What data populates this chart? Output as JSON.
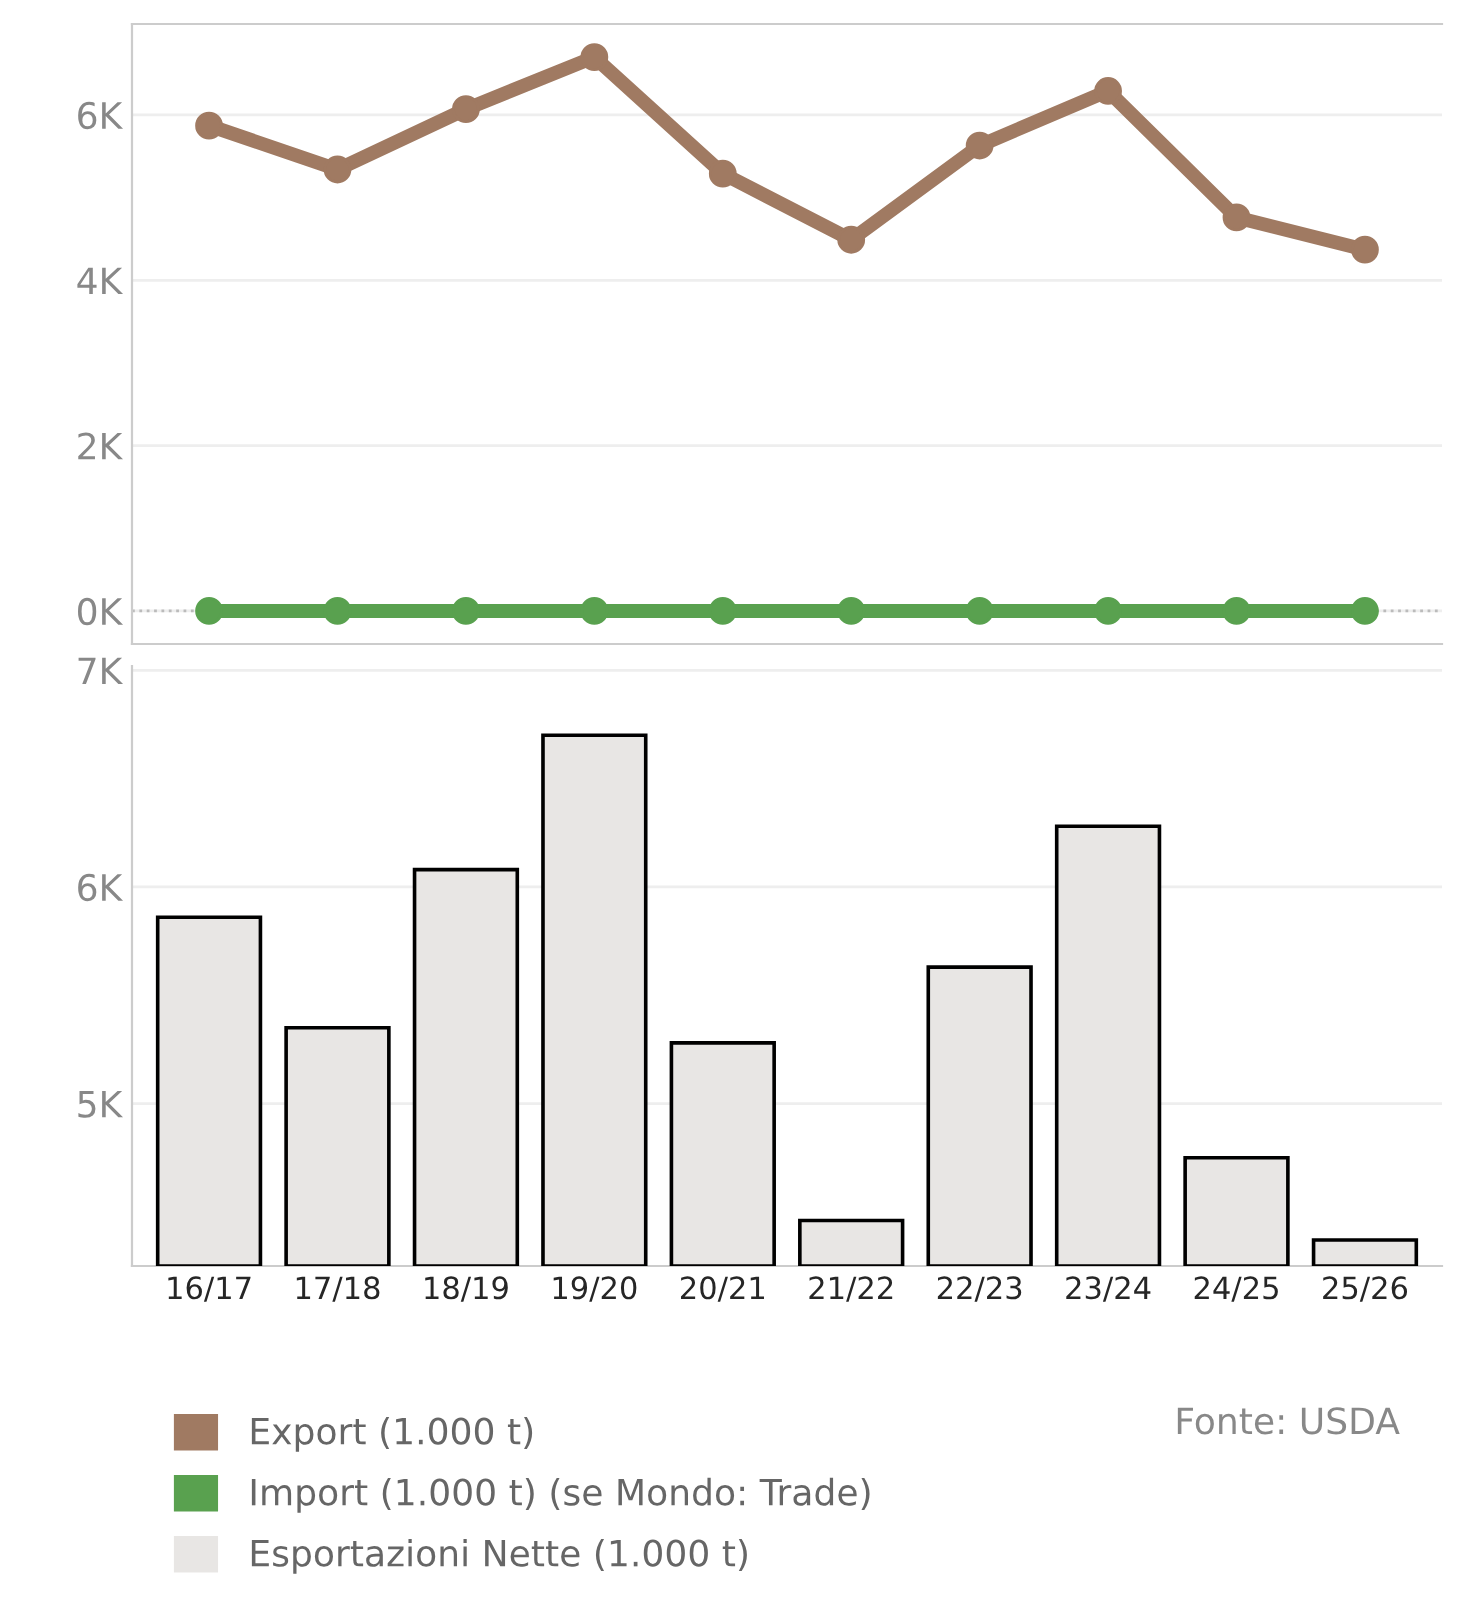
{
  "chart_data": [
    {
      "type": "line",
      "categories": [
        null,
        null,
        null,
        null,
        null,
        null,
        null,
        null,
        null,
        null
      ],
      "series": [
        {
          "name": "Export (1.000 t)",
          "color": "#a07a62",
          "values": [
            5870,
            5340,
            6070,
            6700,
            5290,
            4490,
            5630,
            6290,
            4760,
            4370
          ]
        },
        {
          "name": "Import (1.000 t) (se Mondo: Trade)",
          "color": "#59a14f",
          "values": [
            0,
            0,
            0,
            0,
            0,
            0,
            0,
            0,
            0,
            0
          ]
        }
      ],
      "ylim": [
        -400,
        7100
      ],
      "yticks": [
        {
          "value": 0,
          "label": "0K"
        },
        {
          "value": 2000,
          "label": "2K"
        },
        {
          "value": 4000,
          "label": "4K"
        },
        {
          "value": 6000,
          "label": "6K"
        }
      ],
      "grid": "y",
      "marker": "circle",
      "line_style": "solid",
      "tick_labels": "y",
      "legend": "bottom",
      "ref_lines": [
        {
          "axis": "y",
          "value": 0,
          "color": "#bbbbbb",
          "line_style": "dotted"
        }
      ]
    },
    {
      "type": "bar",
      "categories": [
        "16/17",
        "17/18",
        "18/19",
        "19/20",
        "20/21",
        "21/22",
        "22/23",
        "23/24",
        "24/25",
        "25/26"
      ],
      "series": [
        {
          "name": "Esportazioni Nette (1.000 t)",
          "color": "#e8e6e4",
          "values": [
            5860,
            5350,
            6080,
            6700,
            5280,
            4460,
            5630,
            6280,
            4750,
            4370
          ]
        }
      ],
      "ylim": [
        4250,
        7020
      ],
      "yticks": [
        {
          "value": 5000,
          "label": "5K"
        },
        {
          "value": 6000,
          "label": "6K"
        },
        {
          "value": 7000,
          "label": "7K"
        }
      ],
      "grid": "y",
      "legend": "bottom",
      "annotations": [
        "Fonte: USDA"
      ]
    }
  ]
}
